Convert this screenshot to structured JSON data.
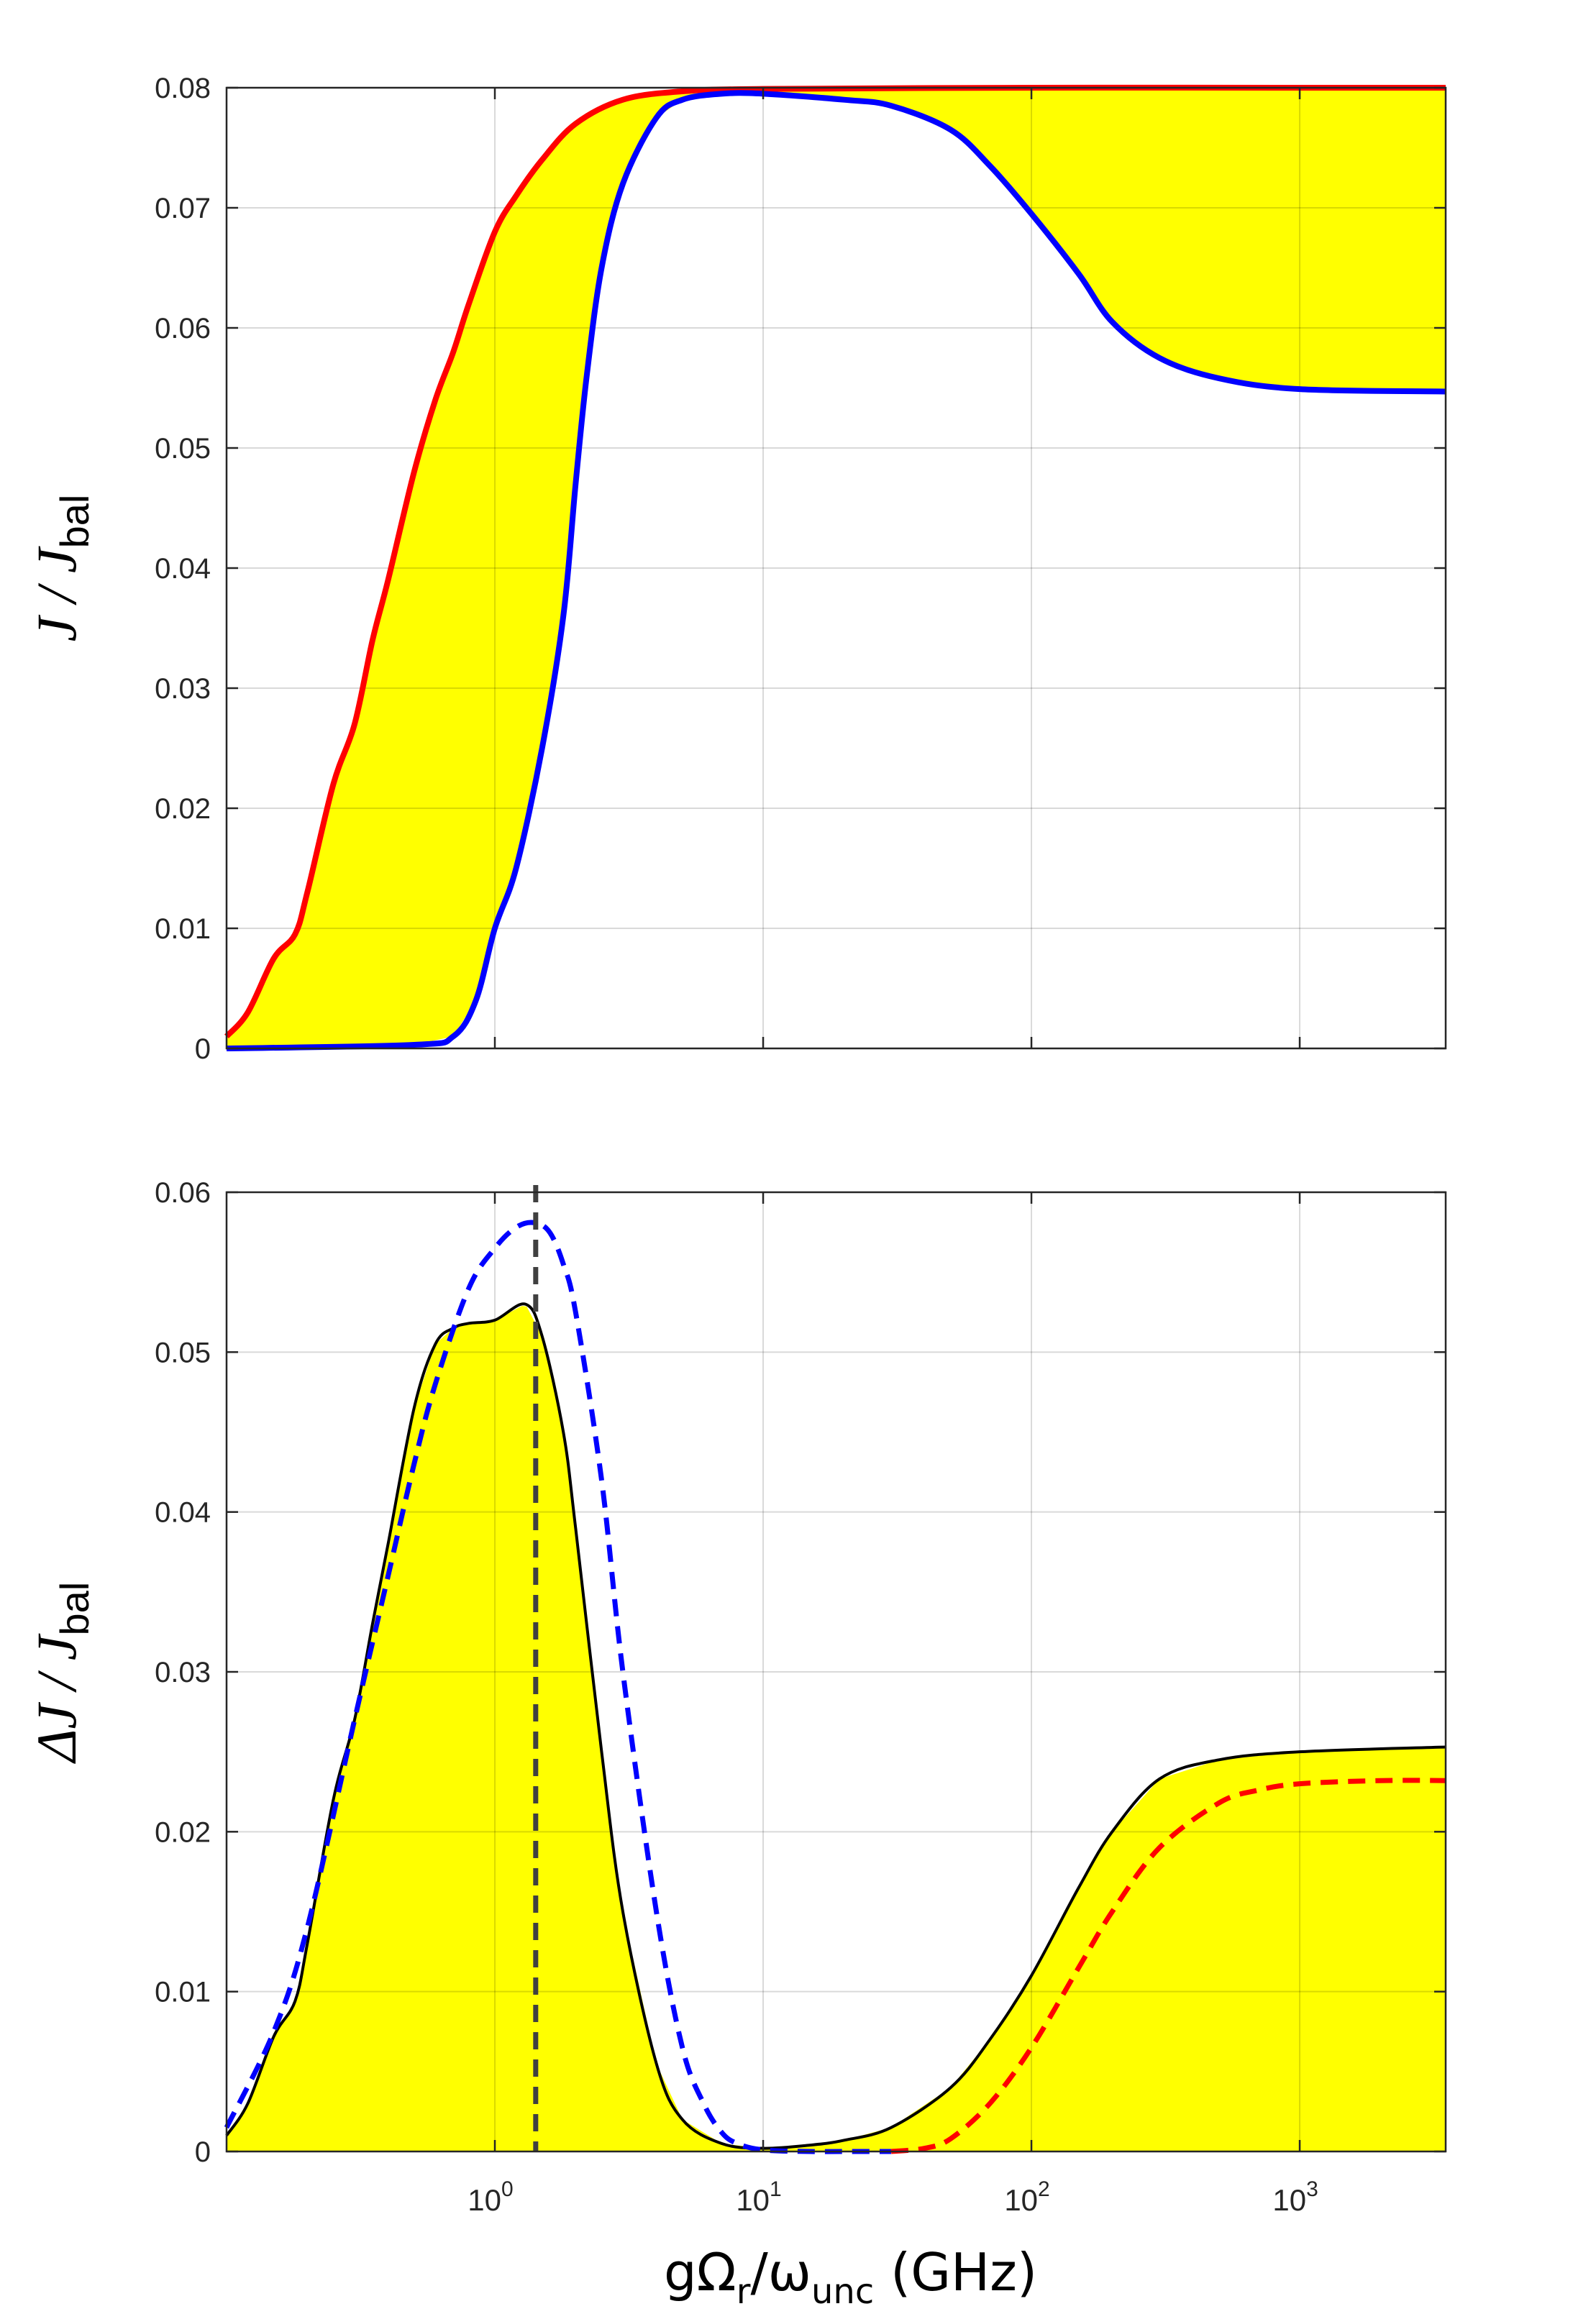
{
  "chart_data": [
    {
      "type": "area",
      "panel": "top",
      "ylabel": {
        "main": "J / J",
        "sub": "bal"
      },
      "xscale": "log",
      "xlim": [
        0.1,
        3500
      ],
      "ylim": [
        0,
        0.08
      ],
      "yticks": [
        0,
        0.01,
        0.02,
        0.03,
        0.04,
        0.05,
        0.06,
        0.07,
        0.08
      ],
      "yticklabels": [
        "0",
        "0.01",
        "0.02",
        "0.03",
        "0.04",
        "0.05",
        "0.06",
        "0.07",
        "0.08"
      ],
      "xticks": [
        1,
        10,
        100,
        1000
      ],
      "grid": true,
      "fill_color": "#FFFF00",
      "series": [
        {
          "color": "#FF0000",
          "style": "solid",
          "x": [
            0.1,
            0.12,
            0.15,
            0.18,
            0.2,
            0.25,
            0.3,
            0.35,
            0.4,
            0.5,
            0.6,
            0.7,
            0.8,
            1.0,
            1.2,
            1.5,
            2.0,
            3.0,
            5.0,
            10,
            100,
            1000,
            3500
          ],
          "y": [
            0.001,
            0.003,
            0.0075,
            0.0095,
            0.013,
            0.022,
            0.027,
            0.034,
            0.039,
            0.048,
            0.054,
            0.058,
            0.062,
            0.068,
            0.071,
            0.074,
            0.077,
            0.079,
            0.0797,
            0.0799,
            0.08,
            0.08,
            0.08
          ]
        },
        {
          "color": "#0000FF",
          "style": "solid",
          "x": [
            0.1,
            0.5,
            0.7,
            0.85,
            1.0,
            1.2,
            1.5,
            1.8,
            2.0,
            2.2,
            2.5,
            3.0,
            4.0,
            5.0,
            7.0,
            10,
            20,
            30,
            50,
            70,
            100,
            150,
            200,
            300,
            500,
            1000,
            3500
          ],
          "y": [
            0,
            0.0003,
            0.001,
            0.004,
            0.01,
            0.015,
            0.025,
            0.036,
            0.047,
            0.056,
            0.065,
            0.072,
            0.0775,
            0.079,
            0.0795,
            0.0795,
            0.079,
            0.0785,
            0.0765,
            0.0735,
            0.0695,
            0.0645,
            0.0605,
            0.0575,
            0.0558,
            0.0549,
            0.0547
          ]
        }
      ]
    },
    {
      "type": "area",
      "panel": "bottom",
      "ylabel": {
        "main": "ΔJ / J",
        "sub": "bal"
      },
      "xlabel": {
        "g": "g",
        "omega_r": "Ω",
        "r_sub": "r",
        "slash": "/ω",
        "unc_sub": "unc",
        "units": "(GHz)"
      },
      "xscale": "log",
      "xlim": [
        0.1,
        3500
      ],
      "ylim": [
        0,
        0.06
      ],
      "yticks": [
        0,
        0.01,
        0.02,
        0.03,
        0.04,
        0.05,
        0.06
      ],
      "yticklabels": [
        "0",
        "0.01",
        "0.02",
        "0.03",
        "0.04",
        "0.05",
        "0.06"
      ],
      "xticks": [
        1,
        10,
        100,
        1000
      ],
      "xticklabels": [
        {
          "base": "10",
          "exp": "0"
        },
        {
          "base": "10",
          "exp": "1"
        },
        {
          "base": "10",
          "exp": "2"
        },
        {
          "base": "10",
          "exp": "3"
        }
      ],
      "grid": true,
      "fill_color": "#FFFF00",
      "vline": {
        "x": 1.42,
        "color": "#404040",
        "style": "dashed"
      },
      "series": [
        {
          "color": "#000000",
          "style": "solid",
          "x": [
            0.1,
            0.12,
            0.15,
            0.18,
            0.2,
            0.25,
            0.3,
            0.35,
            0.4,
            0.5,
            0.6,
            0.7,
            0.8,
            1.0,
            1.3,
            1.5,
            1.8,
            2.0,
            2.5,
            3.0,
            4.0,
            5.0,
            7.0,
            10,
            15,
            20,
            30,
            50,
            70,
            100,
            150,
            200,
            300,
            500,
            1000,
            3500
          ],
          "y": [
            0.001,
            0.003,
            0.0072,
            0.0094,
            0.013,
            0.022,
            0.027,
            0.033,
            0.038,
            0.0465,
            0.0505,
            0.0515,
            0.0518,
            0.052,
            0.053,
            0.051,
            0.045,
            0.039,
            0.025,
            0.015,
            0.0055,
            0.002,
            0.0005,
            0.0002,
            0.0004,
            0.0007,
            0.0015,
            0.004,
            0.007,
            0.011,
            0.0165,
            0.02,
            0.0233,
            0.0245,
            0.025,
            0.0253
          ]
        },
        {
          "color": "#0000FF",
          "style": "dashed",
          "x": [
            0.1,
            0.15,
            0.2,
            0.3,
            0.4,
            0.5,
            0.6,
            0.8,
            1.0,
            1.2,
            1.4,
            1.6,
            1.8,
            2.0,
            2.5,
            3.0,
            4.0,
            5.0,
            6.0,
            7.0,
            8.0,
            10,
            15,
            20,
            30
          ],
          "y": [
            0.0015,
            0.0075,
            0.014,
            0.027,
            0.036,
            0.043,
            0.048,
            0.054,
            0.0565,
            0.0578,
            0.0581,
            0.0575,
            0.0555,
            0.0525,
            0.042,
            0.03,
            0.015,
            0.0065,
            0.003,
            0.0012,
            0.0005,
            0.0001,
            0,
            0,
            0
          ]
        },
        {
          "color": "#FF0000",
          "style": "dashed",
          "x": [
            30,
            40,
            50,
            70,
            100,
            150,
            200,
            300,
            500,
            700,
            1000,
            2000,
            3500
          ],
          "y": [
            0,
            0.0002,
            0.0008,
            0.003,
            0.0065,
            0.0115,
            0.015,
            0.019,
            0.0218,
            0.0226,
            0.023,
            0.0232,
            0.0232
          ]
        }
      ]
    }
  ]
}
